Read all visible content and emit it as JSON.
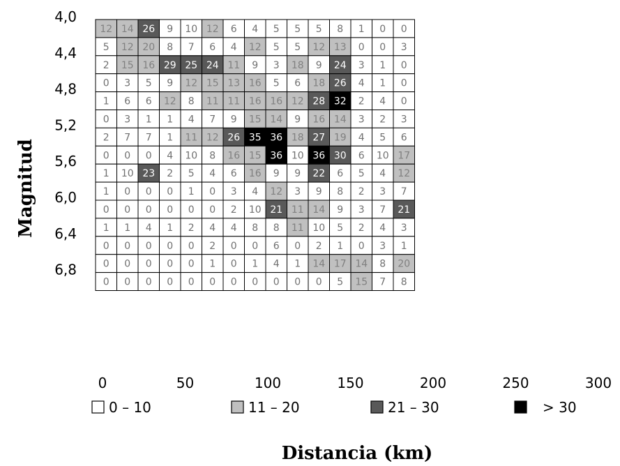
{
  "chart_data": {
    "type": "heatmap",
    "xlabel": "Distancia (km)",
    "ylabel": "Magnitud",
    "x_ticks": [
      "0",
      "50",
      "100",
      "150",
      "200",
      "250",
      "300"
    ],
    "y_ticks": [
      "4,0",
      "4,4",
      "4,8",
      "5,2",
      "5,6",
      "6,0",
      "6,4",
      "6,8"
    ],
    "xlim": [
      0,
      300
    ],
    "ylim": [
      4.0,
      7.0
    ],
    "legend": [
      {
        "label": "0 – 10",
        "color": "#ffffff"
      },
      {
        "label": "11 – 20",
        "color": "#c0c0c0"
      },
      {
        "label": "21 – 30",
        "color": "#595959"
      },
      {
        "label": "> 30",
        "color": "#000000"
      }
    ],
    "values": [
      [
        12,
        14,
        26,
        9,
        10,
        12,
        6,
        4,
        5,
        5,
        5,
        8,
        1,
        0,
        0
      ],
      [
        5,
        12,
        20,
        8,
        7,
        6,
        4,
        12,
        5,
        5,
        12,
        13,
        0,
        0,
        3
      ],
      [
        2,
        15,
        16,
        29,
        25,
        24,
        11,
        9,
        3,
        18,
        9,
        24,
        3,
        1,
        0
      ],
      [
        0,
        3,
        5,
        9,
        12,
        15,
        13,
        16,
        5,
        6,
        18,
        26,
        4,
        1,
        0
      ],
      [
        1,
        6,
        6,
        12,
        8,
        11,
        11,
        16,
        16,
        12,
        28,
        32,
        2,
        4,
        0
      ],
      [
        0,
        3,
        1,
        1,
        4,
        7,
        9,
        15,
        14,
        9,
        16,
        14,
        3,
        2,
        3
      ],
      [
        2,
        7,
        7,
        1,
        11,
        12,
        26,
        35,
        36,
        18,
        27,
        19,
        4,
        5,
        6
      ],
      [
        0,
        0,
        0,
        4,
        10,
        8,
        16,
        15,
        36,
        10,
        36,
        30,
        6,
        10,
        17
      ],
      [
        1,
        10,
        23,
        2,
        5,
        4,
        6,
        16,
        9,
        9,
        22,
        6,
        5,
        4,
        12
      ],
      [
        1,
        0,
        0,
        0,
        1,
        0,
        3,
        4,
        12,
        3,
        9,
        8,
        2,
        3,
        7
      ],
      [
        0,
        0,
        0,
        0,
        0,
        0,
        2,
        10,
        21,
        11,
        14,
        9,
        3,
        7,
        21
      ],
      [
        1,
        1,
        4,
        1,
        2,
        4,
        4,
        8,
        8,
        11,
        10,
        5,
        2,
        4,
        3
      ],
      [
        0,
        0,
        0,
        0,
        0,
        2,
        0,
        0,
        6,
        0,
        2,
        1,
        0,
        3,
        1
      ],
      [
        0,
        0,
        0,
        0,
        0,
        1,
        0,
        1,
        4,
        1,
        14,
        17,
        14,
        8,
        20
      ],
      [
        0,
        0,
        0,
        0,
        0,
        0,
        0,
        0,
        0,
        0,
        0,
        5,
        15,
        7,
        8
      ]
    ]
  }
}
